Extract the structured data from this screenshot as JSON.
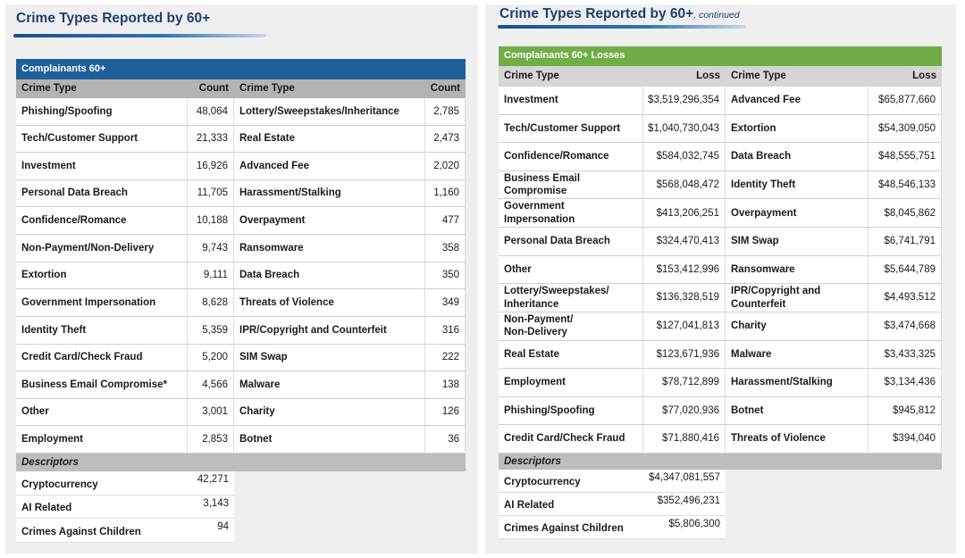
{
  "left": {
    "title": "Crime Types Reported by 60+",
    "table_title": "Complainants 60+",
    "columns": [
      "Crime Type",
      "Count",
      "Crime Type",
      "Count"
    ],
    "rows": [
      [
        "Phishing/Spoofing",
        "48,064",
        "Lottery/Sweepstakes/Inheritance",
        "2,785"
      ],
      [
        "Tech/Customer Support",
        "21,333",
        "Real Estate",
        "2,473"
      ],
      [
        "Investment",
        "16,926",
        "Advanced Fee",
        "2,020"
      ],
      [
        "Personal Data Breach",
        "11,705",
        "Harassment/Stalking",
        "1,160"
      ],
      [
        "Confidence/Romance",
        "10,188",
        "Overpayment",
        "477"
      ],
      [
        "Non-Payment/Non-Delivery",
        "9,743",
        "Ransomware",
        "358"
      ],
      [
        "Extortion",
        "9,111",
        "Data Breach",
        "350"
      ],
      [
        "Government Impersonation",
        "8,628",
        "Threats of Violence",
        "349"
      ],
      [
        "Identity Theft",
        "5,359",
        "IPR/Copyright and Counterfeit",
        "316"
      ],
      [
        "Credit Card/Check Fraud",
        "5,200",
        "SIM Swap",
        "222"
      ],
      [
        "Business Email Compromise*",
        "4,566",
        "Malware",
        "138"
      ],
      [
        "Other",
        "3,001",
        "Charity",
        "126"
      ],
      [
        "Employment",
        "2,853",
        "Botnet",
        "36"
      ]
    ],
    "descriptors_label": "Descriptors",
    "descriptors": [
      [
        "Cryptocurrency",
        "42,271"
      ],
      [
        "AI Related",
        "3,143"
      ],
      [
        "Crimes Against Children",
        "94"
      ]
    ]
  },
  "right": {
    "title": "Crime Types Reported by 60+",
    "subtitle": ", continued",
    "table_title": "Complainants 60+ Losses",
    "columns": [
      "Crime Type",
      "Loss",
      "Crime Type",
      "Loss"
    ],
    "rows": [
      [
        "Investment",
        "$3,519,296,354",
        "Advanced Fee",
        "$65,877,660"
      ],
      [
        "Tech/Customer Support",
        "$1,040,730,043",
        "Extortion",
        "$54,309,050"
      ],
      [
        "Confidence/Romance",
        "$584,032,745",
        "Data Breach",
        "$48,555,751"
      ],
      [
        "Business Email\nCompromise",
        "$568,048,472",
        "Identity Theft",
        "$48,546,133"
      ],
      [
        "Government\nImpersonation",
        "$413,206,251",
        "Overpayment",
        "$8,045,862"
      ],
      [
        "Personal Data Breach",
        "$324,470,413",
        "SIM Swap",
        "$6,741,791"
      ],
      [
        "Other",
        "$153,412,996",
        "Ransomware",
        "$5,644,789"
      ],
      [
        "Lottery/Sweepstakes/\nInheritance",
        "$136,328,519",
        "IPR/Copyright and\nCounterfeit",
        "$4,493,512"
      ],
      [
        "Non-Payment/\nNon-Delivery",
        "$127,041,813",
        "Charity",
        "$3,474,668"
      ],
      [
        "Real Estate",
        "$123,671,936",
        "Malware",
        "$3,433,325"
      ],
      [
        "Employment",
        "$78,712,899",
        "Harassment/Stalking",
        "$3,134,436"
      ],
      [
        "Phishing/Spoofing",
        "$77,020,936",
        "Botnet",
        "$945,812"
      ],
      [
        "Credit Card/Check Fraud",
        "$71,880,416",
        "Threats of Violence",
        "$394,040"
      ]
    ],
    "descriptors_label": "Descriptors",
    "descriptors": [
      [
        "Cryptocurrency",
        "$4,347,081,557"
      ],
      [
        "AI Related",
        "$352,496,231"
      ],
      [
        "Crimes Against Children",
        "$5,806,300"
      ]
    ]
  }
}
